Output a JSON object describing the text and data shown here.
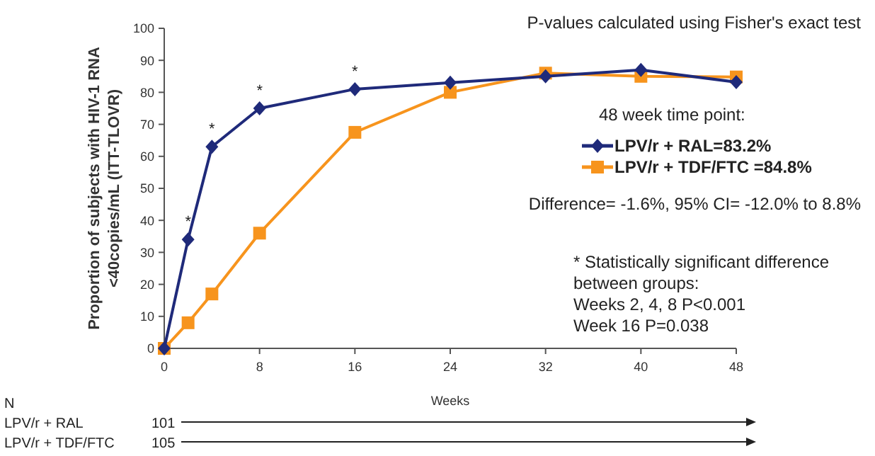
{
  "chart_data": {
    "type": "line",
    "title": "P-values calculated using Fisher's exact test",
    "xlabel": "Weeks",
    "ylabel": "Proportion of subjects with HIV-1 RNA <40copies/mL (ITT-TLOVR)",
    "legend_title": "48 week time point:",
    "legend": "right",
    "grid": false,
    "x": [
      0,
      2,
      4,
      8,
      16,
      24,
      32,
      40,
      48
    ],
    "xlim": [
      0,
      48
    ],
    "xticks": [
      0,
      8,
      16,
      24,
      32,
      40,
      48
    ],
    "ylim": [
      0,
      100
    ],
    "yticks": [
      0,
      10,
      20,
      30,
      40,
      50,
      60,
      70,
      80,
      90,
      100
    ],
    "series": [
      {
        "name": "LPV/r + RAL=83.2%",
        "color": "#1f2a7a",
        "marker": "diamond",
        "values": [
          0,
          34,
          63,
          75,
          81,
          83,
          85,
          87,
          83.2
        ]
      },
      {
        "name": "LPV/r + TDF/FTC =84.8%",
        "color": "#f7941d",
        "marker": "square",
        "values": [
          0,
          8,
          17,
          36,
          67.5,
          80,
          86,
          85,
          84.8
        ]
      }
    ],
    "annotations": [
      {
        "text": "*",
        "x": 2,
        "y": 34
      },
      {
        "text": "*",
        "x": 4,
        "y": 63
      },
      {
        "text": "*",
        "x": 8,
        "y": 75
      },
      {
        "text": "*",
        "x": 16,
        "y": 81
      },
      "Difference= -1.6%, 95% CI= -12.0% to 8.8%",
      "* Statistically significant difference\nbetween groups:\nWeeks 2, 4, 8  P<0.001\nWeek 16  P=0.038",
      "N",
      "LPV/r + RAL",
      "101",
      "LPV/r + TDF/FTC",
      "105"
    ]
  }
}
